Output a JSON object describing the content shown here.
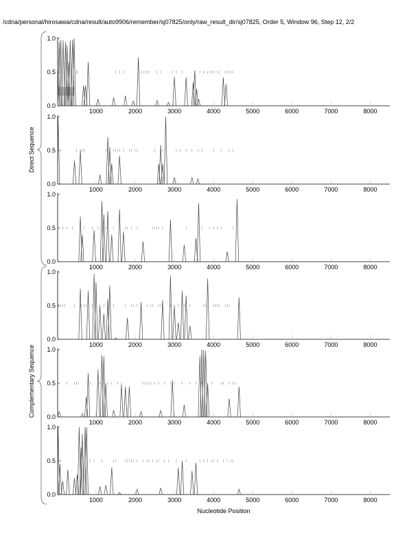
{
  "chart_data": {
    "type": "line",
    "title": "/cdna/personal/hirosawa/cdna/result/auto9906/remember/sj07825/only/raw_result_dir/sj07825, Order 5, Window 96, Step 12, 2/2",
    "xlabel": "Nucleotide Position",
    "group_labels": [
      "Direct Sequence",
      "Complementary Sequence"
    ],
    "xlim": [
      20,
      8500
    ],
    "ylim": [
      0,
      1
    ],
    "xticks": [
      1000,
      2000,
      3000,
      4000,
      5000,
      6000,
      7000,
      8000
    ],
    "yticks": [
      "0.0",
      "0.5",
      "1.0"
    ],
    "highlight_region": {
      "panel": 0,
      "x": [
        0,
        450
      ],
      "y": [
        0.15,
        0.28
      ]
    },
    "panels": [
      {
        "group": "Direct Sequence",
        "peaks": [
          [
            20,
            0.6
          ],
          [
            60,
            0.95
          ],
          [
            100,
            0.98
          ],
          [
            160,
            0.97
          ],
          [
            220,
            0.95
          ],
          [
            260,
            0.9
          ],
          [
            300,
            0.65
          ],
          [
            340,
            0.97
          ],
          [
            400,
            0.98
          ],
          [
            440,
            1.0
          ],
          [
            680,
            0.3
          ],
          [
            730,
            0.3
          ],
          [
            800,
            0.65
          ],
          [
            1050,
            0.1
          ],
          [
            1450,
            0.12
          ],
          [
            1750,
            0.15
          ],
          [
            1950,
            0.07
          ],
          [
            2080,
            0.72
          ],
          [
            2560,
            0.08
          ],
          [
            2850,
            0.05
          ],
          [
            3000,
            0.43
          ],
          [
            3300,
            0.42
          ],
          [
            3480,
            0.35
          ],
          [
            3520,
            0.53
          ],
          [
            3570,
            0.25
          ],
          [
            3620,
            0.1
          ],
          [
            4250,
            0.42
          ],
          [
            4320,
            0.32
          ]
        ],
        "markers": [
          500,
          530,
          1500,
          1600,
          1700,
          2150,
          2200,
          2250,
          2300,
          2350,
          2550,
          2650,
          2950,
          3050,
          3200,
          3650,
          3750,
          3850,
          3900,
          3950,
          4000,
          4100,
          4150,
          4300,
          4350,
          4400,
          4450,
          4500
        ]
      },
      {
        "group": "Direct Sequence",
        "peaks": [
          [
            30,
            1.0
          ],
          [
            450,
            0.35
          ],
          [
            600,
            0.5
          ],
          [
            1100,
            0.14
          ],
          [
            1300,
            0.7
          ],
          [
            1350,
            0.55
          ],
          [
            1400,
            0.3
          ],
          [
            1600,
            0.42
          ],
          [
            2600,
            0.3
          ],
          [
            2650,
            0.58
          ],
          [
            2700,
            0.3
          ],
          [
            2780,
            1.0
          ],
          [
            3000,
            0.1
          ],
          [
            3450,
            0.1
          ],
          [
            3600,
            0.08
          ]
        ],
        "markers": [
          100,
          500,
          600,
          650,
          700,
          1250,
          1450,
          1500,
          1550,
          1600,
          1700,
          1850,
          1900,
          2000,
          2050,
          2500,
          2650,
          2700,
          3050,
          3150,
          3300,
          3450,
          3600,
          3700,
          4000,
          4200,
          4400,
          4500
        ]
      },
      {
        "group": "Direct Sequence",
        "peaks": [
          [
            600,
            0.67
          ],
          [
            650,
            0.4
          ],
          [
            950,
            0.47
          ],
          [
            1150,
            0.9
          ],
          [
            1200,
            0.7
          ],
          [
            1300,
            0.75
          ],
          [
            1400,
            0.4
          ],
          [
            1600,
            0.78
          ],
          [
            1700,
            0.45
          ],
          [
            2200,
            0.3
          ],
          [
            2900,
            0.62
          ],
          [
            3250,
            0.25
          ],
          [
            3550,
            0.35
          ],
          [
            3620,
            0.87
          ],
          [
            4350,
            0.15
          ],
          [
            4600,
            0.93
          ]
        ],
        "markers": [
          150,
          250,
          400,
          700,
          900,
          1050,
          1250,
          1450,
          1750,
          1800,
          1900,
          2050,
          2450,
          2500,
          2550,
          2600,
          2700,
          3300,
          3700,
          3900,
          4000,
          4100,
          4200,
          4500
        ]
      },
      {
        "group": "Complementary Sequence",
        "peaks": [
          [
            600,
            0.75
          ],
          [
            800,
            0.72
          ],
          [
            950,
            0.97
          ],
          [
            1000,
            0.85
          ],
          [
            1100,
            0.5
          ],
          [
            1200,
            0.38
          ],
          [
            1300,
            0.6
          ],
          [
            1350,
            0.8
          ],
          [
            1500,
            0.02
          ],
          [
            1800,
            0.32
          ],
          [
            2150,
            0.55
          ],
          [
            2700,
            0.58
          ],
          [
            2900,
            0.95
          ],
          [
            3000,
            0.5
          ],
          [
            3100,
            0.25
          ],
          [
            3200,
            0.72
          ],
          [
            3300,
            0.65
          ],
          [
            3400,
            0.2
          ],
          [
            3850,
            0.9
          ],
          [
            4650,
            0.62
          ]
        ],
        "markers": [
          50,
          100,
          150,
          200,
          450,
          600,
          700,
          750,
          900,
          1100,
          1200,
          1300,
          1450,
          1750,
          1900,
          1950,
          2050,
          2150,
          2300,
          2400,
          2450,
          2600,
          2650,
          2900,
          3000,
          3100,
          3250,
          3400,
          3750,
          3800,
          4000,
          4050,
          4100,
          4150,
          4300,
          4350,
          4400
        ]
      },
      {
        "group": "Complementary Sequence",
        "peaks": [
          [
            60,
            0.08
          ],
          [
            650,
            0.05
          ],
          [
            750,
            0.3
          ],
          [
            800,
            0.65
          ],
          [
            1050,
            0.7
          ],
          [
            1150,
            0.92
          ],
          [
            1200,
            0.9
          ],
          [
            1250,
            0.5
          ],
          [
            1450,
            0.1
          ],
          [
            1650,
            0.48
          ],
          [
            1750,
            0.45
          ],
          [
            1850,
            0.45
          ],
          [
            2150,
            0.08
          ],
          [
            2650,
            0.1
          ],
          [
            2950,
            0.55
          ],
          [
            3250,
            0.18
          ],
          [
            3650,
            0.9
          ],
          [
            3700,
            1.0
          ],
          [
            3750,
            1.0
          ],
          [
            3800,
            0.98
          ],
          [
            3850,
            0.5
          ],
          [
            4400,
            0.27
          ],
          [
            4650,
            0.45
          ]
        ],
        "markers": [
          250,
          450,
          500,
          550,
          850,
          1100,
          1300,
          1400,
          1550,
          1650,
          2200,
          2250,
          2300,
          2350,
          2400,
          2500,
          2600,
          2750,
          2900,
          3000,
          3200,
          3400,
          3550,
          3700,
          3950,
          4200,
          4250,
          4400,
          4500,
          4550
        ]
      },
      {
        "group": "Complementary Sequence",
        "peaks": [
          [
            30,
            1.0
          ],
          [
            80,
            0.45
          ],
          [
            150,
            0.2
          ],
          [
            280,
            0.37
          ],
          [
            450,
            0.25
          ],
          [
            520,
            0.3
          ],
          [
            570,
            1.0
          ],
          [
            620,
            0.7
          ],
          [
            650,
            0.9
          ],
          [
            720,
            1.0
          ],
          [
            760,
            1.0
          ],
          [
            1100,
            0.12
          ],
          [
            1250,
            0.14
          ],
          [
            1400,
            0.4
          ],
          [
            1600,
            0.03
          ],
          [
            2050,
            0.08
          ],
          [
            2650,
            0.1
          ],
          [
            3100,
            0.4
          ],
          [
            3200,
            0.5
          ],
          [
            3450,
            0.35
          ],
          [
            3550,
            0.47
          ],
          [
            4650,
            0.08
          ]
        ],
        "markers": [
          100,
          850,
          950,
          1150,
          1450,
          1500,
          1750,
          1800,
          1850,
          1900,
          1950,
          2050,
          2200,
          2300,
          2350,
          2450,
          2550,
          2600,
          2750,
          2850,
          3050,
          3300,
          3650,
          3750,
          3850,
          3950,
          4000,
          4100,
          4250,
          4350,
          4450,
          4500
        ]
      }
    ]
  }
}
